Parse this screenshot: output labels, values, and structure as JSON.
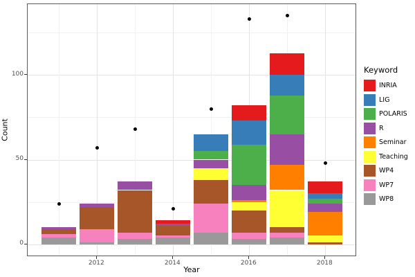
{
  "chart_data": {
    "type": "bar",
    "stacked": true,
    "xlabel": "Year",
    "ylabel": "Count",
    "legend_title": "Keyword",
    "legend_position": "right",
    "grid": true,
    "x": [
      2011,
      2012,
      2013,
      2014,
      2015,
      2016,
      2017,
      2018
    ],
    "axes": {
      "y_ticks": [
        {
          "value": 0,
          "label": "0"
        },
        {
          "value": 50,
          "label": "50"
        },
        {
          "value": 100,
          "label": "100"
        }
      ],
      "y_minor": [
        25,
        75,
        125
      ],
      "x_ticks": [
        {
          "year": 2012,
          "label": "2012"
        },
        {
          "year": 2014,
          "label": "2014"
        },
        {
          "year": 2016,
          "label": "2016"
        },
        {
          "year": 2018,
          "label": "2018"
        }
      ],
      "x_minor_years": [
        2011,
        2013,
        2015,
        2017
      ],
      "ylim": [
        -7.5,
        143
      ]
    },
    "series": [
      {
        "name": "INRIA",
        "color": "#E41A1C",
        "values": [
          0,
          0,
          0,
          2,
          0,
          9,
          13,
          7
        ]
      },
      {
        "name": "LIG",
        "color": "#377EB8",
        "values": [
          0,
          0,
          0,
          0,
          10,
          14,
          12,
          3
        ]
      },
      {
        "name": "POLARIS",
        "color": "#4DAF4A",
        "values": [
          0,
          0,
          0,
          0,
          5,
          24,
          23,
          3
        ]
      },
      {
        "name": "R",
        "color": "#984EA3",
        "values": [
          1,
          2,
          5,
          1,
          5,
          9,
          18,
          5
        ]
      },
      {
        "name": "Seminar",
        "color": "#FF7F00",
        "values": [
          0,
          0,
          0,
          0,
          0,
          1,
          15,
          14
        ]
      },
      {
        "name": "Teaching",
        "color": "#FFFF33",
        "values": [
          0,
          0,
          0,
          0,
          7,
          5,
          22,
          4
        ]
      },
      {
        "name": "WP4",
        "color": "#A65628",
        "values": [
          3,
          13,
          25,
          6,
          14,
          13,
          3,
          1
        ]
      },
      {
        "name": "WP7",
        "color": "#F781BF",
        "values": [
          2,
          8,
          4,
          1,
          17,
          4,
          3,
          0
        ]
      },
      {
        "name": "WP8",
        "color": "#999999",
        "values": [
          4,
          1,
          3,
          4,
          7,
          3,
          4,
          0
        ]
      }
    ],
    "stack_order_bottom_to_top": [
      "WP8",
      "WP7",
      "WP4",
      "Teaching",
      "Seminar",
      "R",
      "POLARIS",
      "LIG",
      "INRIA"
    ],
    "points": {
      "color": "#000000",
      "values": [
        24,
        57,
        68,
        21,
        80,
        133,
        135,
        48
      ]
    },
    "bar_totals": [
      10,
      24,
      37,
      14,
      65,
      82,
      113,
      37
    ]
  }
}
